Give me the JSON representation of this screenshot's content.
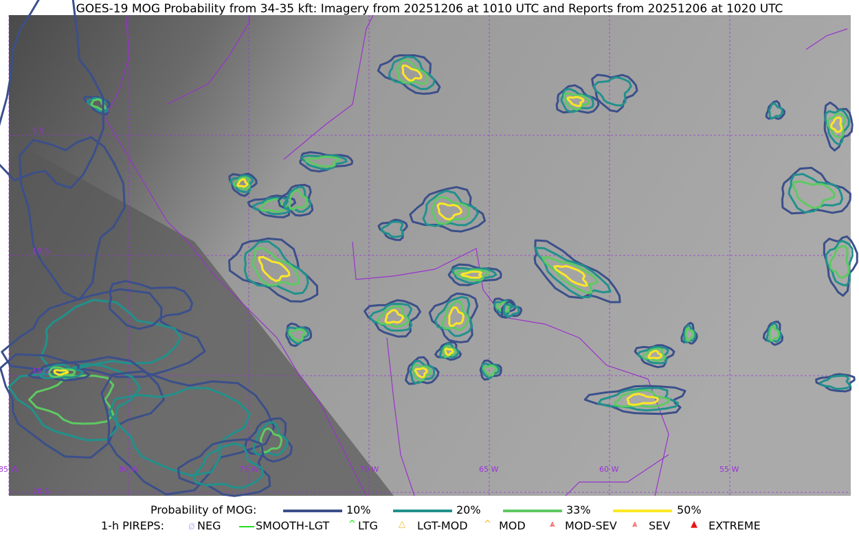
{
  "title": "GOES-19 MOG Probability from 34-35 kft: Imagery from 20251206 at 1010 UTC and Reports from 20251206 at 1020 UTC",
  "map": {
    "lon_labels": [
      "85 W",
      "80 W",
      "75 W",
      "70 W",
      "65 W",
      "60 W",
      "55 W"
    ],
    "lat_labels": [
      "5 S",
      "10 S",
      "15 S",
      "20 S"
    ],
    "grid_color": "#9b30d9",
    "border_color": "#9932cc"
  },
  "legend": {
    "probability_label": "Probability of MOG:",
    "levels": [
      {
        "label": "10%",
        "color": "#3b4f8a"
      },
      {
        "label": "20%",
        "color": "#21918c"
      },
      {
        "label": "33%",
        "color": "#5ec962"
      },
      {
        "label": "50%",
        "color": "#fde725"
      }
    ],
    "pireps_label": "1-h PIREPS:",
    "pireps": [
      {
        "label": "NEG",
        "color": "#c8c8f0",
        "icon": "neg-icon"
      },
      {
        "label": "SMOOTH-LGT",
        "color": "#22dd22",
        "icon": "line-icon"
      },
      {
        "label": "LTG",
        "color": "#00ee00",
        "icon": "caret-icon"
      },
      {
        "label": "LGT-MOD",
        "color": "#f5b522",
        "icon": "caret-bar-icon"
      },
      {
        "label": "MOD",
        "color": "#f5b522",
        "icon": "caret-icon"
      },
      {
        "label": "MOD-SEV",
        "color": "#ee2222",
        "icon": "double-caret-bar-icon"
      },
      {
        "label": "SEV",
        "color": "#ee2222",
        "icon": "double-caret-icon"
      },
      {
        "label": "EXTREME",
        "color": "#ee1111",
        "icon": "filled-triangle-icon"
      }
    ]
  }
}
